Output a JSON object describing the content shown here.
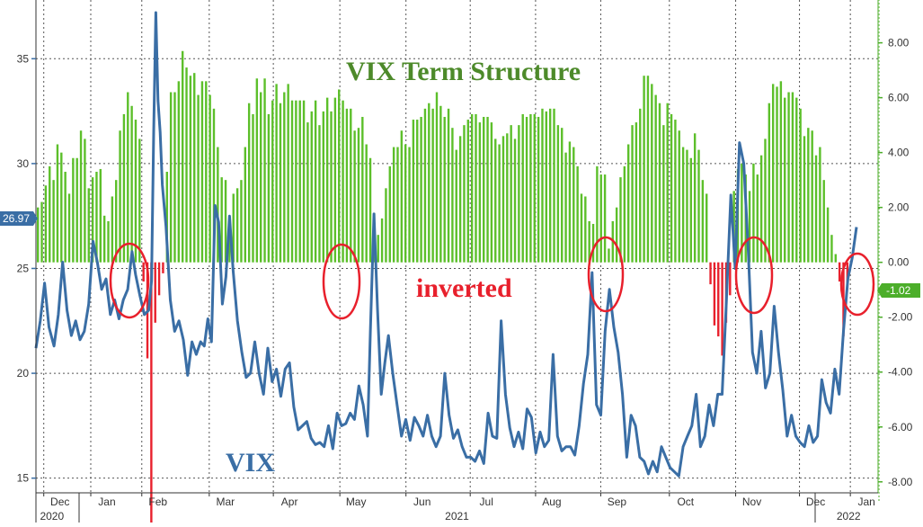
{
  "chart_data": {
    "type": "bar+line",
    "annotations": {
      "term": "VIX Term Structure",
      "vix": "VIX",
      "inverted": "inverted"
    },
    "badges": {
      "left": "26.97",
      "right": "-1.02"
    },
    "colors": {
      "vix_line": "#3a6ea5",
      "bars_pos": "#5cbf2a",
      "bars_neg": "#e8202c",
      "circle": "#e8202c",
      "left_badge": "#3a6ea5",
      "right_badge": "#4cae2a"
    },
    "left_axis": {
      "ylim": [
        14.3,
        37.8
      ],
      "ticks": [
        15,
        20,
        25,
        30,
        35
      ]
    },
    "right_axis": {
      "ylim": [
        -8.4,
        9.56
      ],
      "ticks": [
        "8.00",
        "6.00",
        "4.00",
        "2.00",
        "0.00",
        "-2.00",
        "-4.00",
        "-6.00",
        "-8.00"
      ]
    },
    "x_axis": {
      "start": "2020-11-25",
      "end": "2022-01-25",
      "months": [
        {
          "label": "Dec",
          "pos": 0.0285
        },
        {
          "label": "Jan",
          "pos": 0.0843
        },
        {
          "label": "Feb",
          "pos": 0.1449
        },
        {
          "label": "Mar",
          "pos": 0.225
        },
        {
          "label": "Apr",
          "pos": 0.3011
        },
        {
          "label": "May",
          "pos": 0.3801
        },
        {
          "label": "Jun",
          "pos": 0.4586
        },
        {
          "label": "Jul",
          "pos": 0.5349
        },
        {
          "label": "Aug",
          "pos": 0.6125
        },
        {
          "label": "Sep",
          "pos": 0.6899
        },
        {
          "label": "Oct",
          "pos": 0.7714
        },
        {
          "label": "Nov",
          "pos": 0.8501
        },
        {
          "label": "Dec",
          "pos": 0.9259
        },
        {
          "label": "Jan",
          "pos": 0.9863
        }
      ],
      "years": [
        {
          "label": "2020",
          "pos": 0.019
        },
        {
          "label": "2021",
          "pos": 0.5
        },
        {
          "label": "2022",
          "pos": 0.965
        }
      ]
    },
    "vix_series": [
      [
        0.0,
        21.2
      ],
      [
        0.006,
        22.5
      ],
      [
        0.012,
        24.3
      ],
      [
        0.018,
        22.2
      ],
      [
        0.025,
        21.3
      ],
      [
        0.031,
        22.8
      ],
      [
        0.037,
        25.3
      ],
      [
        0.043,
        23.0
      ],
      [
        0.049,
        21.8
      ],
      [
        0.055,
        22.5
      ],
      [
        0.061,
        21.6
      ],
      [
        0.067,
        22.0
      ],
      [
        0.073,
        23.3
      ],
      [
        0.079,
        26.3
      ],
      [
        0.085,
        25.3
      ],
      [
        0.091,
        24.0
      ],
      [
        0.097,
        24.5
      ],
      [
        0.103,
        22.8
      ],
      [
        0.109,
        23.5
      ],
      [
        0.115,
        22.6
      ],
      [
        0.121,
        23.5
      ],
      [
        0.127,
        24.0
      ],
      [
        0.133,
        25.8
      ],
      [
        0.138,
        24.7
      ],
      [
        0.144,
        23.7
      ],
      [
        0.15,
        22.8
      ],
      [
        0.156,
        23.0
      ],
      [
        0.16,
        24.4
      ],
      [
        0.163,
        31.5
      ],
      [
        0.166,
        37.2
      ],
      [
        0.169,
        33.0
      ],
      [
        0.172,
        31.5
      ],
      [
        0.175,
        29.0
      ],
      [
        0.18,
        27.0
      ],
      [
        0.186,
        23.5
      ],
      [
        0.192,
        22.0
      ],
      [
        0.198,
        22.5
      ],
      [
        0.204,
        21.6
      ],
      [
        0.21,
        19.9
      ],
      [
        0.216,
        21.5
      ],
      [
        0.222,
        20.9
      ],
      [
        0.228,
        21.5
      ],
      [
        0.233,
        21.3
      ],
      [
        0.238,
        22.6
      ],
      [
        0.243,
        21.5
      ],
      [
        0.248,
        28.0
      ],
      [
        0.253,
        27.2
      ],
      [
        0.258,
        23.3
      ],
      [
        0.263,
        24.6
      ],
      [
        0.268,
        27.5
      ],
      [
        0.273,
        24.9
      ],
      [
        0.279,
        22.5
      ],
      [
        0.285,
        21.0
      ],
      [
        0.291,
        19.8
      ],
      [
        0.297,
        20.0
      ],
      [
        0.303,
        21.5
      ],
      [
        0.309,
        20.0
      ],
      [
        0.315,
        19.0
      ],
      [
        0.321,
        21.2
      ],
      [
        0.327,
        19.6
      ],
      [
        0.333,
        20.2
      ],
      [
        0.339,
        18.9
      ],
      [
        0.345,
        20.2
      ],
      [
        0.351,
        20.5
      ],
      [
        0.357,
        18.4
      ],
      [
        0.363,
        17.3
      ],
      [
        0.369,
        17.5
      ],
      [
        0.375,
        17.7
      ],
      [
        0.381,
        16.9
      ],
      [
        0.387,
        16.6
      ],
      [
        0.393,
        16.7
      ],
      [
        0.399,
        16.5
      ],
      [
        0.405,
        17.5
      ],
      [
        0.411,
        16.4
      ],
      [
        0.417,
        18.1
      ],
      [
        0.423,
        17.5
      ],
      [
        0.429,
        17.6
      ],
      [
        0.435,
        18.1
      ],
      [
        0.441,
        17.8
      ],
      [
        0.447,
        19.4
      ],
      [
        0.453,
        18.5
      ],
      [
        0.459,
        17.0
      ],
      [
        0.463,
        22.0
      ],
      [
        0.468,
        27.6
      ],
      [
        0.473,
        23.0
      ],
      [
        0.478,
        19.0
      ],
      [
        0.483,
        20.5
      ],
      [
        0.488,
        21.8
      ],
      [
        0.494,
        20.0
      ],
      [
        0.5,
        18.5
      ],
      [
        0.506,
        17.0
      ],
      [
        0.512,
        17.8
      ],
      [
        0.518,
        16.8
      ],
      [
        0.524,
        17.9
      ],
      [
        0.53,
        17.5
      ],
      [
        0.536,
        17.0
      ],
      [
        0.542,
        18.0
      ],
      [
        0.548,
        17.0
      ],
      [
        0.554,
        16.5
      ],
      [
        0.56,
        17.0
      ],
      [
        0.566,
        20.0
      ],
      [
        0.572,
        18.0
      ],
      [
        0.578,
        16.9
      ],
      [
        0.584,
        17.3
      ],
      [
        0.59,
        16.5
      ],
      [
        0.596,
        16.0
      ],
      [
        0.602,
        16.0
      ],
      [
        0.608,
        15.8
      ],
      [
        0.614,
        16.3
      ],
      [
        0.62,
        15.7
      ],
      [
        0.626,
        18.1
      ],
      [
        0.632,
        17.0
      ],
      [
        0.638,
        16.9
      ],
      [
        0.644,
        22.5
      ],
      [
        0.65,
        19.0
      ],
      [
        0.656,
        17.4
      ],
      [
        0.662,
        16.5
      ],
      [
        0.668,
        17.2
      ],
      [
        0.674,
        16.4
      ],
      [
        0.68,
        18.3
      ],
      [
        0.686,
        17.9
      ],
      [
        0.692,
        16.2
      ],
      [
        0.698,
        17.2
      ],
      [
        0.704,
        16.5
      ],
      [
        0.71,
        16.8
      ],
      [
        0.716,
        20.9
      ],
      [
        0.722,
        17.0
      ],
      [
        0.728,
        16.3
      ],
      [
        0.734,
        16.5
      ],
      [
        0.74,
        16.5
      ],
      [
        0.746,
        16.1
      ],
      [
        0.752,
        17.5
      ],
      [
        0.758,
        19.5
      ],
      [
        0.764,
        20.9
      ],
      [
        0.77,
        24.8
      ],
      [
        0.776,
        18.5
      ],
      [
        0.782,
        18.0
      ],
      [
        0.788,
        22.0
      ],
      [
        0.794,
        24.0
      ],
      [
        0.8,
        22.2
      ],
      [
        0.806,
        21.0
      ],
      [
        0.812,
        19.0
      ],
      [
        0.818,
        16.0
      ],
      [
        0.824,
        18.0
      ],
      [
        0.83,
        17.5
      ],
      [
        0.836,
        16.0
      ],
      [
        0.842,
        15.8
      ],
      [
        0.848,
        15.2
      ],
      [
        0.854,
        15.8
      ],
      [
        0.86,
        15.3
      ],
      [
        0.866,
        16.5
      ],
      [
        0.872,
        16.0
      ],
      [
        0.878,
        15.5
      ],
      [
        0.884,
        15.3
      ],
      [
        0.89,
        15.1
      ],
      [
        0.896,
        16.5
      ],
      [
        0.902,
        17.0
      ],
      [
        0.908,
        17.5
      ],
      [
        0.914,
        19.0
      ],
      [
        0.92,
        16.5
      ],
      [
        0.926,
        17.0
      ],
      [
        0.932,
        18.5
      ],
      [
        0.938,
        17.5
      ],
      [
        0.944,
        19.0
      ],
      [
        0.95,
        19.0
      ],
      [
        0.956,
        23.5
      ],
      [
        0.962,
        28.5
      ],
      [
        0.968,
        25.0
      ],
      [
        0.974,
        31.0
      ],
      [
        0.98,
        30.0
      ],
      [
        0.986,
        26.0
      ],
      [
        0.992,
        21.0
      ],
      [
        0.998,
        20.0
      ],
      [
        1.004,
        22.0
      ],
      [
        1.01,
        19.3
      ],
      [
        1.016,
        20.0
      ],
      [
        1.022,
        23.2
      ],
      [
        1.028,
        21.0
      ],
      [
        1.034,
        19.2
      ],
      [
        1.04,
        17.0
      ],
      [
        1.046,
        18.0
      ],
      [
        1.052,
        17.0
      ],
      [
        1.058,
        16.7
      ],
      [
        1.064,
        16.5
      ],
      [
        1.07,
        17.5
      ],
      [
        1.076,
        16.7
      ],
      [
        1.082,
        17.0
      ],
      [
        1.088,
        19.7
      ],
      [
        1.094,
        18.6
      ],
      [
        1.1,
        18.1
      ],
      [
        1.106,
        20.2
      ],
      [
        1.112,
        19.0
      ],
      [
        1.118,
        22.0
      ],
      [
        1.124,
        24.5
      ],
      [
        1.13,
        25.5
      ],
      [
        1.136,
        26.97
      ]
    ],
    "term_structure_bars": [
      2.0,
      2.2,
      2.8,
      3.5,
      3.0,
      4.3,
      4.0,
      3.3,
      2.5,
      3.8,
      3.8,
      4.8,
      4.5,
      2.7,
      3.1,
      3.3,
      3.4,
      1.7,
      1.5,
      2.4,
      3.0,
      4.8,
      5.4,
      6.2,
      5.7,
      5.2,
      4.5,
      -0.7,
      -3.5,
      -10.1,
      -2.2,
      -1.2,
      -0.4,
      3.3,
      6.2,
      6.2,
      6.6,
      7.7,
      7.1,
      6.8,
      6.9,
      6.1,
      6.6,
      6.6,
      6.1,
      5.6,
      4.2,
      3.1,
      3.0,
      1.1,
      2.5,
      2.7,
      3.0,
      4.2,
      5.8,
      5.4,
      6.7,
      6.2,
      6.7,
      5.4,
      5.9,
      6.5,
      5.8,
      6.2,
      6.5,
      5.9,
      5.9,
      5.9,
      5.9,
      5.1,
      5.5,
      5.9,
      5.0,
      5.5,
      6.0,
      5.5,
      6.0,
      6.3,
      5.9,
      5.6,
      5.6,
      4.8,
      4.9,
      5.3,
      4.3,
      3.8,
      1.8,
      1.0,
      1.6,
      2.7,
      3.5,
      4.2,
      4.2,
      4.8,
      4.3,
      4.2,
      5.2,
      5.2,
      5.3,
      5.6,
      5.8,
      5.6,
      6.2,
      5.7,
      5.3,
      5.6,
      4.9,
      4.1,
      4.6,
      5.0,
      5.2,
      5.4,
      5.4,
      5.1,
      5.3,
      5.3,
      5.1,
      4.5,
      4.3,
      4.6,
      4.7,
      5.0,
      4.5,
      5.0,
      5.4,
      5.3,
      5.4,
      5.4,
      5.3,
      5.6,
      5.5,
      5.6,
      5.6,
      5.0,
      4.9,
      4.0,
      4.4,
      4.2,
      3.5,
      2.5,
      2.4,
      1.5,
      1.4,
      3.5,
      3.2,
      3.2,
      0.5,
      1.5,
      2.0,
      3.1,
      3.5,
      4.3,
      5.0,
      5.1,
      5.6,
      6.8,
      6.8,
      6.5,
      6.1,
      5.8,
      5.0,
      5.8,
      5.4,
      5.2,
      4.8,
      4.2,
      4.1,
      3.8,
      4.7,
      4.1,
      3.0,
      2.5,
      -0.8,
      -2.3,
      -2.7,
      -3.4,
      -2.2,
      -1.2,
      2.6,
      3.4,
      3.6,
      3.2,
      2.6,
      3.6,
      3.2,
      3.9,
      4.5,
      5.8,
      6.5,
      6.4,
      6.6,
      6.0,
      6.2,
      6.2,
      6.0,
      5.6,
      4.6,
      4.9,
      4.8,
      3.9,
      4.2,
      3.0,
      2.0,
      1.0,
      0.3,
      -0.7,
      -2.7,
      -1.0
    ]
  }
}
